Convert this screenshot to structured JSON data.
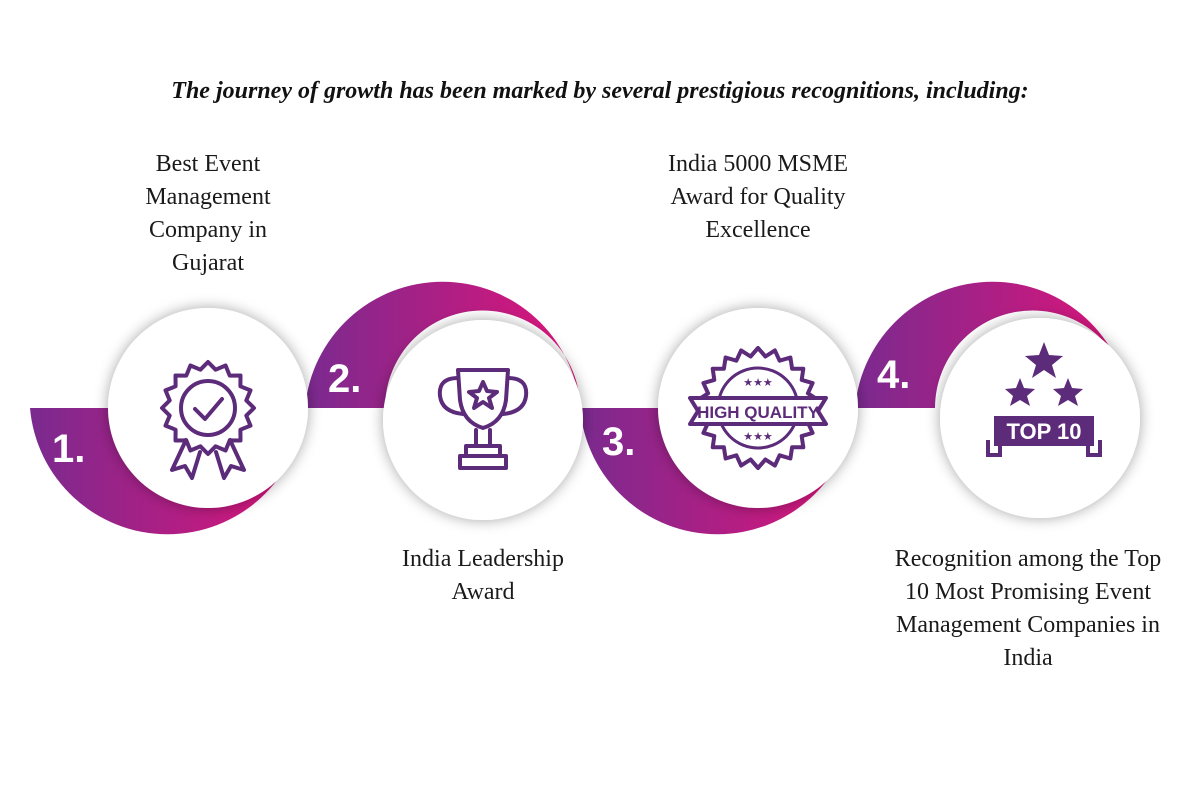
{
  "headline": "The journey of growth has been marked by several prestigious recognitions, including:",
  "colors": {
    "ring_start": "#7a2a8f",
    "ring_end": "#e0147a",
    "icon": "#5c2b7a",
    "circle": "#ffffff"
  },
  "steps": [
    {
      "number": "1.",
      "label": "Best Event Management Company in Gujarat",
      "icon": "rosette-check-icon"
    },
    {
      "number": "2.",
      "label": "India Leadership Award",
      "icon": "trophy-icon"
    },
    {
      "number": "3.",
      "label": "India 5000 MSME Award for Quality Excellence",
      "icon": "high-quality-badge-icon",
      "badge_text": "HIGH QUALITY"
    },
    {
      "number": "4.",
      "label": "Recognition among the Top 10 Most Promising Event Management Companies in India",
      "icon": "top10-stars-icon",
      "badge_text": "TOP 10"
    }
  ]
}
